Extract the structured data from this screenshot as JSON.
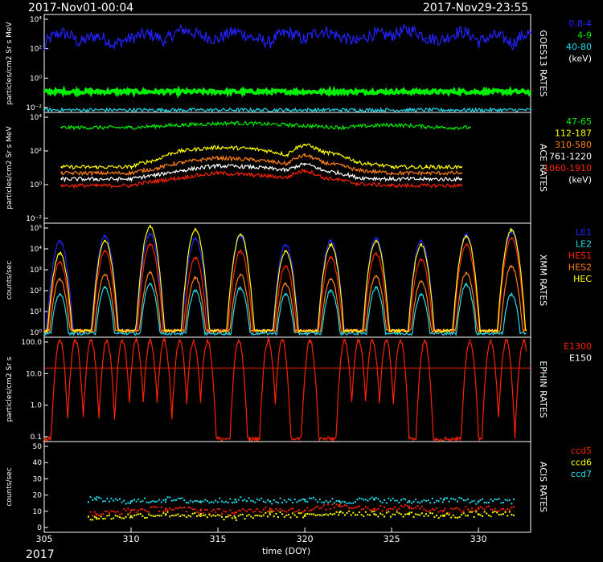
{
  "header": {
    "start": "2017-Nov01-00:04",
    "end": "2017-Nov29-23:55"
  },
  "footer": {
    "year": "2017",
    "xlabel": "time (DOY)"
  },
  "xaxis": {
    "range": [
      305,
      333
    ],
    "ticks": [
      "305",
      "310",
      "315",
      "320",
      "325",
      "330"
    ]
  },
  "colors": {
    "blue": "#2222ff",
    "green": "#00ee00",
    "cyan": "#22ddee",
    "yellow": "#ffff00",
    "orange": "#ff7f1a",
    "red": "#ff2200",
    "white": "#ffffff"
  },
  "chart_data": [
    {
      "type": "line",
      "title": "GOES13 RATES",
      "ylabel": "particles/cm2 Sr s MeV",
      "yscale": "log",
      "ylim": [
        0.01,
        100000
      ],
      "yticks": [
        "10⁴",
        "10²",
        "10⁰",
        "10⁻²"
      ],
      "legend": [
        "0.8-4",
        "4-9",
        "40-80",
        "(keV)"
      ],
      "series": [
        {
          "name": "0.8-4",
          "color": "#2222ff",
          "x": [
            305,
            306,
            307,
            308,
            309,
            310,
            311,
            312,
            313,
            314,
            315,
            316,
            317,
            318,
            319,
            320,
            321,
            322,
            323,
            324,
            325,
            326,
            327,
            328,
            329,
            330,
            331,
            332,
            333
          ],
          "values": [
            300,
            5000,
            800,
            3000,
            600,
            2000,
            4000,
            1000,
            8000,
            3000,
            1500,
            6000,
            2000,
            900,
            5000,
            1200,
            7000,
            2500,
            1000,
            4000,
            3000,
            8000,
            2000,
            1500,
            6000,
            1000,
            3000,
            700,
            5000
          ]
        },
        {
          "name": "4-9",
          "color": "#00ee00",
          "x": [
            305,
            312,
            319,
            326,
            333
          ],
          "values": [
            0.3,
            0.3,
            0.3,
            0.3,
            0.3
          ]
        },
        {
          "name": "40-80",
          "color": "#22ddee",
          "x": [
            305,
            312,
            319,
            326,
            333
          ],
          "values": [
            0.015,
            0.015,
            0.015,
            0.015,
            0.015
          ]
        }
      ]
    },
    {
      "type": "line",
      "title": "ACE RATES",
      "ylabel": "particles/cm2 Sr s MeV",
      "yscale": "log",
      "ylim": [
        0.001,
        20000
      ],
      "yticks": [
        "10⁴",
        "10²",
        "10⁰",
        "10⁻²"
      ],
      "legend": [
        "47-65",
        "112-187",
        "310-580",
        "761-1220",
        "1060-1910",
        "(keV)"
      ],
      "series": [
        {
          "name": "47-65",
          "color": "#00ee00",
          "x": [
            306,
            310,
            313,
            316,
            319,
            322,
            325,
            328,
            329.5
          ],
          "values": [
            2000,
            2000,
            3000,
            4000,
            3000,
            2000,
            3000,
            2000,
            2000
          ]
        },
        {
          "name": "112-187",
          "color": "#ffff00",
          "x": [
            306,
            308,
            310,
            311.5,
            313,
            315,
            317,
            319,
            320,
            321,
            323,
            325,
            327,
            329
          ],
          "values": [
            5,
            5,
            5,
            15,
            60,
            100,
            80,
            30,
            150,
            50,
            10,
            5,
            5,
            5
          ]
        },
        {
          "name": "310-580",
          "color": "#ff7f1a",
          "x": [
            306,
            308,
            310,
            311.5,
            313,
            315,
            317,
            319,
            320,
            321,
            323,
            325,
            327,
            329
          ],
          "values": [
            2,
            2,
            2,
            4,
            10,
            20,
            15,
            8,
            30,
            10,
            3,
            2,
            2,
            2
          ]
        },
        {
          "name": "761-1220",
          "color": "#ffffff",
          "x": [
            306,
            308,
            310,
            311.5,
            313,
            315,
            317,
            319,
            320,
            321,
            323,
            325,
            327,
            329
          ],
          "values": [
            0.8,
            0.8,
            0.8,
            1.5,
            3,
            6,
            5,
            3,
            8,
            3,
            1,
            0.8,
            0.8,
            0.8
          ]
        },
        {
          "name": "1060-1910",
          "color": "#ff2200",
          "x": [
            306,
            308,
            310,
            311.5,
            313,
            315,
            317,
            319,
            320,
            321,
            323,
            325,
            327,
            329
          ],
          "values": [
            0.3,
            0.3,
            0.3,
            0.6,
            1,
            2,
            1.5,
            1,
            3,
            1,
            0.4,
            0.3,
            0.3,
            0.3
          ]
        }
      ]
    },
    {
      "type": "line",
      "title": "XMM RATES",
      "ylabel": "counts/sec",
      "yscale": "log",
      "ylim": [
        1,
        200000
      ],
      "yticks": [
        "10⁵",
        "10⁴",
        "10³",
        "10²",
        "10¹",
        "10⁰"
      ],
      "legend": [
        "LE1",
        "LE2",
        "HES1",
        "HES2",
        "HEC"
      ],
      "series": [
        {
          "name": "LE1",
          "color": "#2222ff",
          "x": [
            305.9,
            308.5,
            311.1,
            313.7,
            316.3,
            318.9,
            321.5,
            324.1,
            326.7,
            329.3,
            331.9
          ],
          "values": [
            30000,
            50000,
            60000,
            40000,
            50000,
            20000,
            30000,
            40000,
            30000,
            60000,
            80000
          ]
        },
        {
          "name": "LE2",
          "color": "#22ddee",
          "x": [
            305.9,
            308.5,
            311.1,
            313.7,
            316.3,
            318.9,
            321.5,
            324.1,
            326.7,
            329.3,
            331.9
          ],
          "values": [
            100,
            200,
            300,
            150,
            200,
            100,
            150,
            200,
            100,
            300,
            100
          ]
        },
        {
          "name": "HES1",
          "color": "#ff2200",
          "x": [
            305.9,
            308.5,
            311.1,
            313.7,
            316.3,
            318.9,
            321.5,
            324.1,
            326.7,
            329.3,
            331.9
          ],
          "values": [
            3000,
            10000,
            20000,
            5000,
            10000,
            2000,
            5000,
            8000,
            4000,
            20000,
            40000
          ]
        },
        {
          "name": "HES2",
          "color": "#ff7f1a",
          "x": [
            305.9,
            308.5,
            311.1,
            313.7,
            316.3,
            318.9,
            321.5,
            324.1,
            326.7,
            329.3,
            331.9
          ],
          "values": [
            500,
            800,
            1000,
            600,
            800,
            300,
            500,
            700,
            400,
            1000,
            2000
          ]
        },
        {
          "name": "HEC",
          "color": "#ffff00",
          "x": [
            305.9,
            308.5,
            311.1,
            313.7,
            316.3,
            318.9,
            321.5,
            324.1,
            326.7,
            329.3,
            331.9
          ],
          "values": [
            8000,
            30000,
            150000,
            100000,
            60000,
            10000,
            20000,
            30000,
            20000,
            50000,
            100000
          ]
        }
      ]
    },
    {
      "type": "line",
      "title": "EPHIN RATES",
      "ylabel": "particles/cm2 Sr s",
      "yscale": "log",
      "ylim": [
        0.1,
        100
      ],
      "yticks": [
        "100.0",
        "10.0",
        "1.0",
        "0.1"
      ],
      "legend": [
        "E1300",
        "E150"
      ],
      "threshold": 13,
      "series": [
        {
          "name": "E1300",
          "color": "#ff2200",
          "x": [
            305.9,
            306.8,
            307.7,
            308.6,
            309.5,
            310.3,
            311.1,
            311.9,
            312.8,
            313.6,
            314.4,
            316.2,
            317.9,
            318.7,
            320.3,
            322.3,
            323.1,
            323.9,
            324.7,
            325.5,
            326.9,
            329.5,
            330.7,
            331.6,
            332.6
          ],
          "values": [
            80,
            80,
            80,
            80,
            80,
            80,
            80,
            80,
            80,
            80,
            80,
            80,
            80,
            80,
            80,
            80,
            80,
            80,
            80,
            80,
            80,
            80,
            80,
            80,
            80
          ]
        }
      ]
    },
    {
      "type": "scatter",
      "title": "ACIS RATES",
      "ylabel": "counts/sec",
      "ylim": [
        0,
        50
      ],
      "yticks": [
        "50",
        "40",
        "30",
        "20",
        "10",
        "0"
      ],
      "legend": [
        "ccd5",
        "ccd6",
        "ccd7"
      ],
      "series": [
        {
          "name": "ccd5",
          "color": "#ff2200",
          "x": [
            308,
            310,
            312,
            314,
            316,
            318,
            320,
            322,
            324,
            326,
            328,
            330
          ],
          "values": [
            10,
            12,
            13,
            12,
            11,
            13,
            12,
            15,
            13,
            14,
            12,
            13
          ]
        },
        {
          "name": "ccd6",
          "color": "#ffff00",
          "x": [
            308,
            310,
            312,
            314,
            316,
            318,
            320,
            322,
            324,
            326,
            328,
            330
          ],
          "values": [
            8,
            9,
            10,
            9,
            8,
            10,
            9,
            11,
            10,
            10,
            9,
            10
          ]
        },
        {
          "name": "ccd7",
          "color": "#22ddee",
          "x": [
            308,
            310,
            312,
            314,
            316,
            318,
            320,
            322,
            324,
            326,
            328,
            330
          ],
          "values": [
            18,
            17,
            18,
            17,
            18,
            17,
            18,
            17,
            18,
            17,
            18,
            17
          ]
        }
      ]
    }
  ]
}
